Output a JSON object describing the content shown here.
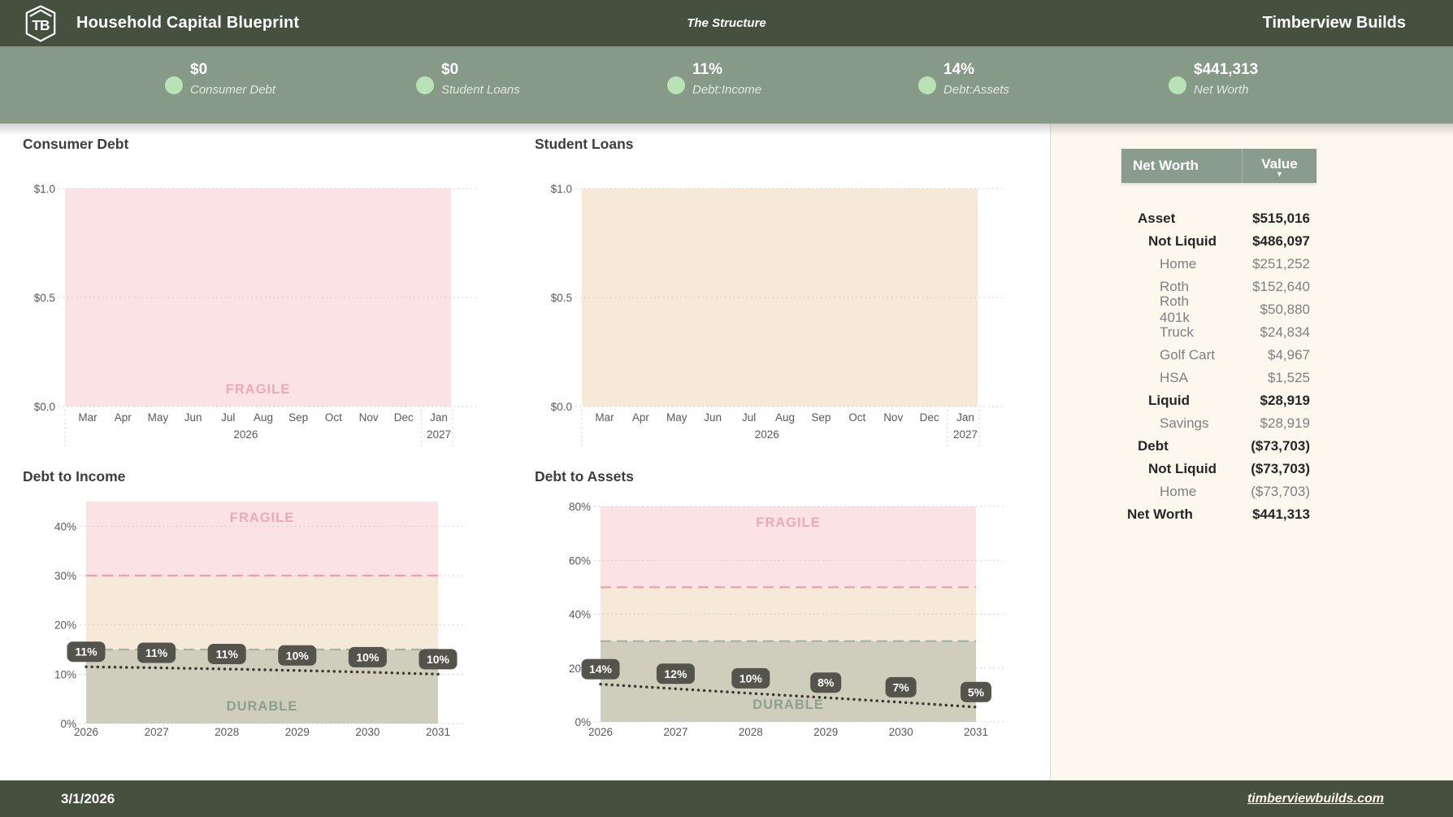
{
  "header": {
    "logo_text": "TB",
    "title": "Household Capital Blueprint",
    "subtitle": "The Structure",
    "brand": "Timberview Builds"
  },
  "kpis": [
    {
      "value": "$0",
      "label": "Consumer Debt"
    },
    {
      "value": "$0",
      "label": "Student Loans"
    },
    {
      "value": "11%",
      "label": "Debt:Income"
    },
    {
      "value": "14%",
      "label": "Debt:Assets"
    },
    {
      "value": "$441,313",
      "label": "Net Worth"
    }
  ],
  "chart_data": [
    {
      "id": "consumer-debt",
      "type": "area",
      "title": "Consumer Debt",
      "x": [
        "Mar",
        "Apr",
        "May",
        "Jun",
        "Jul",
        "Aug",
        "Sep",
        "Oct",
        "Nov",
        "Dec",
        "Jan"
      ],
      "x_groups": [
        {
          "label": "2026",
          "months": "Mar-Dec"
        },
        {
          "label": "2027",
          "months": "Jan"
        }
      ],
      "values": [
        0,
        0,
        0,
        0,
        0,
        0,
        0,
        0,
        0,
        0,
        0
      ],
      "ylim": [
        0,
        1
      ],
      "y_ticks": [
        0,
        0.5,
        1
      ],
      "y_tick_labels": [
        "$0.0",
        "$0.5",
        "$1.0"
      ],
      "grid": true,
      "bands": [
        {
          "from": 0,
          "to": 1,
          "color": "#fbe3e5",
          "label": "FRAGILE",
          "label_color": "#f0a8b2",
          "label_pos": "bottom"
        }
      ]
    },
    {
      "id": "student-loans",
      "type": "area",
      "title": "Student Loans",
      "x": [
        "Mar",
        "Apr",
        "May",
        "Jun",
        "Jul",
        "Aug",
        "Sep",
        "Oct",
        "Nov",
        "Dec",
        "Jan"
      ],
      "x_groups": [
        {
          "label": "2026",
          "months": "Mar-Dec"
        },
        {
          "label": "2027",
          "months": "Jan"
        }
      ],
      "values": [
        0,
        0,
        0,
        0,
        0,
        0,
        0,
        0,
        0,
        0,
        0
      ],
      "ylim": [
        0,
        1
      ],
      "y_ticks": [
        0,
        0.5,
        1
      ],
      "y_tick_labels": [
        "$0.0",
        "$0.5",
        "$1.0"
      ],
      "grid": true,
      "bands": [
        {
          "from": 0,
          "to": 1,
          "color": "#f7e9d8"
        }
      ]
    },
    {
      "id": "debt-to-income",
      "type": "line",
      "title": "Debt to Income",
      "x": [
        "2026",
        "2027",
        "2028",
        "2029",
        "2030",
        "2031"
      ],
      "values": [
        11,
        11,
        11,
        10,
        10,
        10
      ],
      "point_labels": [
        "11%",
        "11%",
        "11%",
        "10%",
        "10%",
        "10%"
      ],
      "line_values": [
        11.5,
        11.3,
        11.05,
        10.75,
        10.4,
        10.0
      ],
      "ylim": [
        0,
        45
      ],
      "y_ticks": [
        0,
        10,
        20,
        30,
        40
      ],
      "y_tick_labels": [
        "0%",
        "10%",
        "20%",
        "30%",
        "40%"
      ],
      "grid": true,
      "bands": [
        {
          "from": 30,
          "to": 45,
          "color": "#fbe3e5",
          "label": "FRAGILE",
          "label_color": "#f0a8b2",
          "label_pos": "top"
        },
        {
          "from": 15,
          "to": 30,
          "color": "#f7e9d8"
        },
        {
          "from": 0,
          "to": 15,
          "color": "#cfcdbc",
          "label": "DURABLE",
          "label_color": "#8ba08e",
          "label_pos": "bottom"
        }
      ],
      "thresholds": [
        {
          "value": 30,
          "color": "#ef9fae"
        },
        {
          "value": 15,
          "color": "#a8b2a0"
        }
      ]
    },
    {
      "id": "debt-to-assets",
      "type": "line",
      "title": "Debt to Assets",
      "x": [
        "2026",
        "2027",
        "2028",
        "2029",
        "2030",
        "2031"
      ],
      "values": [
        14,
        12,
        10,
        8,
        7,
        5
      ],
      "point_labels": [
        "14%",
        "12%",
        "10%",
        "8%",
        "7%",
        "5%"
      ],
      "line_values": [
        14,
        12.3,
        10.6,
        9.0,
        7.3,
        5.5
      ],
      "ylim": [
        0,
        80
      ],
      "y_ticks": [
        0,
        20,
        40,
        60,
        80
      ],
      "y_tick_labels": [
        "0%",
        "20%",
        "40%",
        "60%",
        "80%"
      ],
      "grid": true,
      "bands": [
        {
          "from": 50,
          "to": 80,
          "color": "#fbe3e5",
          "label": "FRAGILE",
          "label_color": "#f0a8b2",
          "label_pos": "top"
        },
        {
          "from": 30,
          "to": 50,
          "color": "#f7e9d8"
        },
        {
          "from": 0,
          "to": 30,
          "color": "#cfcdbc",
          "label": "DURABLE",
          "label_color": "#8ba08e",
          "label_pos": "bottom"
        }
      ],
      "thresholds": [
        {
          "value": 50,
          "color": "#ef9fae"
        },
        {
          "value": 30,
          "color": "#a8b2a0"
        }
      ]
    }
  ],
  "net_worth_table": {
    "column_headers": [
      "Net Worth",
      "Value"
    ],
    "sort_icon": "▼",
    "rows": [
      {
        "label": "Asset",
        "value": "$515,016",
        "level": 1,
        "bold": true
      },
      {
        "label": "Not Liquid",
        "value": "$486,097",
        "level": 2,
        "bold": true
      },
      {
        "label": "Home",
        "value": "$251,252",
        "level": 3,
        "bold": false
      },
      {
        "label": "Roth",
        "value": "$152,640",
        "level": 3,
        "bold": false
      },
      {
        "label": "Roth 401k",
        "value": "$50,880",
        "level": 3,
        "bold": false
      },
      {
        "label": "Truck",
        "value": "$24,834",
        "level": 3,
        "bold": false
      },
      {
        "label": "Golf Cart",
        "value": "$4,967",
        "level": 3,
        "bold": false
      },
      {
        "label": "HSA",
        "value": "$1,525",
        "level": 3,
        "bold": false
      },
      {
        "label": "Liquid",
        "value": "$28,919",
        "level": 2,
        "bold": true
      },
      {
        "label": "Savings",
        "value": "$28,919",
        "level": 3,
        "bold": false
      },
      {
        "label": "Debt",
        "value": "($73,703)",
        "level": 1,
        "bold": true
      },
      {
        "label": "Not Liquid",
        "value": "($73,703)",
        "level": 2,
        "bold": true
      },
      {
        "label": "Home",
        "value": "($73,703)",
        "level": 3,
        "bold": false
      },
      {
        "label": "Net Worth",
        "value": "$441,313",
        "level": 0,
        "bold": true
      }
    ]
  },
  "footer": {
    "date": "3/1/2026",
    "website": "timberviewbuilds.com"
  },
  "colors": {
    "brand_green": "#45503e",
    "bar_sage": "#879a88",
    "dot_mint": "#b9e3b6",
    "panel_cream": "#fdf8ed",
    "chip_dark": "#55544c",
    "line_dark": "#3a3933",
    "fragile_pink": "#f0a8b2",
    "durable_sage": "#8ba08e",
    "pink_band": "#fbe3e5",
    "beige_band": "#f7e9d8",
    "olive_band": "#cfcdbc"
  }
}
